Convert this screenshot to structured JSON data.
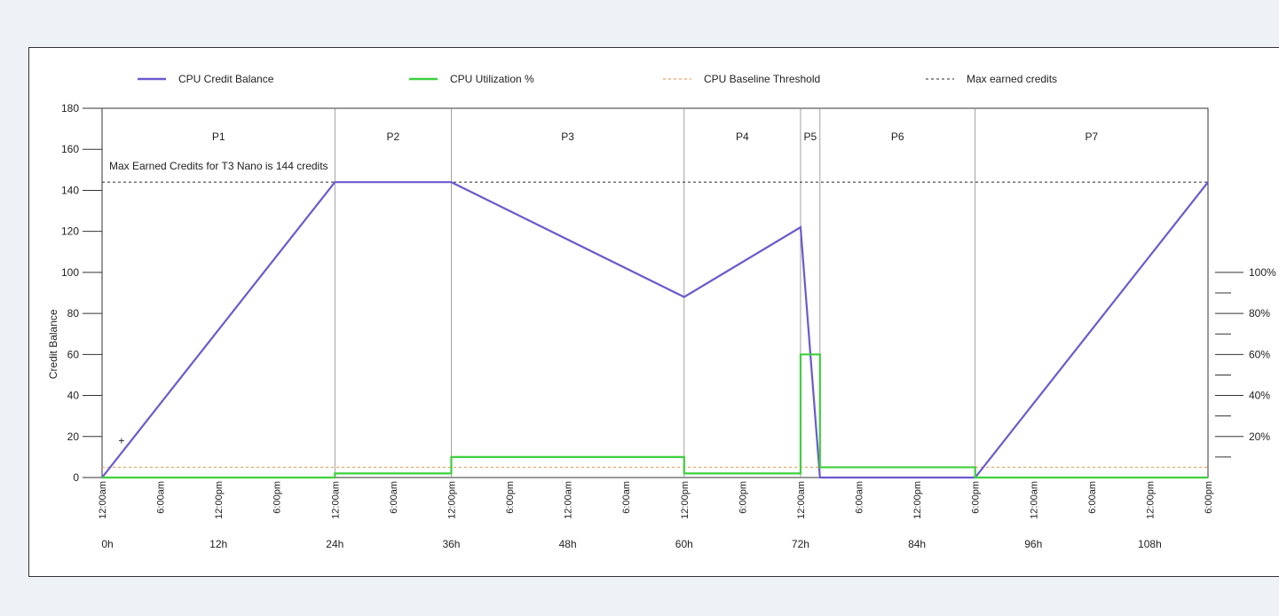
{
  "chart_data": {
    "type": "line",
    "legend": {
      "placement": "top",
      "entries": [
        {
          "label": "CPU Credit Balance",
          "color": "#6a5acd",
          "style": "solid"
        },
        {
          "label": "CPU Utilization %",
          "color": "#3fcf3f",
          "style": "solid"
        },
        {
          "label": "CPU Baseline Threshold",
          "color": "#f0a060",
          "style": "dashed"
        },
        {
          "label": "Max earned credits",
          "color": "#555555",
          "style": "dashed"
        }
      ]
    },
    "ylabel": "Credit Balance",
    "ylim": [
      0,
      180
    ],
    "y_ticks": [
      0,
      20,
      40,
      60,
      80,
      100,
      120,
      140,
      160,
      180
    ],
    "y2_ticks": [
      {
        "value": 20,
        "label": "20%"
      },
      {
        "value": 40,
        "label": "40%"
      },
      {
        "value": 60,
        "label": "60%"
      },
      {
        "value": 80,
        "label": "80%"
      },
      {
        "value": 100,
        "label": "100%"
      }
    ],
    "y2_minor_ticks": [
      10,
      30,
      50,
      70,
      90
    ],
    "xlim": [
      0,
      114
    ],
    "x_time_ticks": [
      {
        "x": 0,
        "label": "12:00am"
      },
      {
        "x": 6,
        "label": "6:00am"
      },
      {
        "x": 12,
        "label": "12:00pm"
      },
      {
        "x": 18,
        "label": "6:00pm"
      },
      {
        "x": 24,
        "label": "12:00am"
      },
      {
        "x": 30,
        "label": "6:00am"
      },
      {
        "x": 36,
        "label": "12:00pm"
      },
      {
        "x": 42,
        "label": "6:00pm"
      },
      {
        "x": 48,
        "label": "12:00am"
      },
      {
        "x": 54,
        "label": "6:00am"
      },
      {
        "x": 60,
        "label": "12:00pm"
      },
      {
        "x": 66,
        "label": "6:00pm"
      },
      {
        "x": 72,
        "label": "12:00am"
      },
      {
        "x": 78,
        "label": "6:00am"
      },
      {
        "x": 84,
        "label": "12:00pm"
      },
      {
        "x": 90,
        "label": "6:00pm"
      },
      {
        "x": 96,
        "label": "12:00am"
      },
      {
        "x": 102,
        "label": "6:00am"
      },
      {
        "x": 108,
        "label": "12:00pm"
      },
      {
        "x": 114,
        "label": "6:00pm"
      }
    ],
    "x_hour_ticks": [
      {
        "x": 0,
        "label": "0h"
      },
      {
        "x": 12,
        "label": "12h"
      },
      {
        "x": 24,
        "label": "24h"
      },
      {
        "x": 36,
        "label": "36h"
      },
      {
        "x": 48,
        "label": "48h"
      },
      {
        "x": 60,
        "label": "60h"
      },
      {
        "x": 72,
        "label": "72h"
      },
      {
        "x": 84,
        "label": "84h"
      },
      {
        "x": 96,
        "label": "96h"
      },
      {
        "x": 108,
        "label": "108h"
      }
    ],
    "periods": [
      {
        "label": "P1",
        "start": 0,
        "end": 24
      },
      {
        "label": "P2",
        "start": 24,
        "end": 36
      },
      {
        "label": "P3",
        "start": 36,
        "end": 60
      },
      {
        "label": "P4",
        "start": 60,
        "end": 72
      },
      {
        "label": "P5",
        "start": 72,
        "end": 74
      },
      {
        "label": "P6",
        "start": 74,
        "end": 90
      },
      {
        "label": "P7",
        "start": 90,
        "end": 114
      }
    ],
    "max_credits": 144,
    "max_annotation": "Max Earned Credits for T3 Nano is 144 credits",
    "baseline_threshold_percent": 5,
    "series": [
      {
        "name": "CPU Credit Balance",
        "color": "#6a5acd",
        "x": [
          0,
          24,
          36,
          60,
          72,
          74,
          90,
          114
        ],
        "y": [
          0,
          144,
          144,
          88,
          122,
          0,
          0,
          144
        ]
      },
      {
        "name": "CPU Utilization %",
        "color": "#3fcf3f",
        "step": true,
        "x": [
          0,
          24,
          36,
          60,
          72,
          74,
          90,
          114
        ],
        "y": [
          0,
          2,
          10,
          2,
          60,
          5,
          0,
          0
        ]
      }
    ],
    "marker": {
      "x": 2,
      "y": 18,
      "symbol": "+",
      "color": "#b03040"
    }
  }
}
